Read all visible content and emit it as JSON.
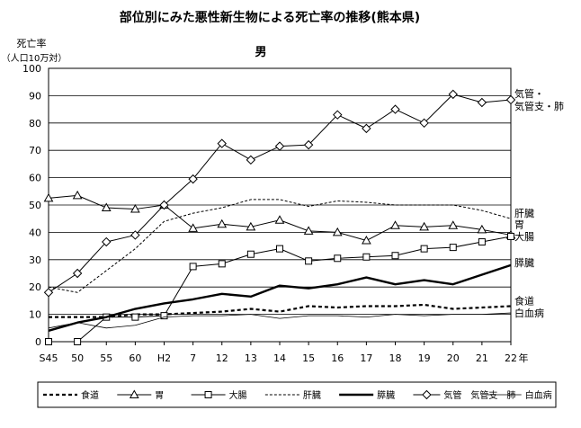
{
  "chart_data": {
    "type": "line",
    "title": "部位別にみた悪性新生物による死亡率の推移(熊本県)",
    "subtitle": "男",
    "ylabel": "死亡率",
    "ylabel_sub": "（人口10万対）",
    "xunit": "年",
    "ylim": [
      0,
      100
    ],
    "yticks": [
      0,
      10,
      20,
      30,
      40,
      50,
      60,
      70,
      80,
      90,
      100
    ],
    "grid": "horizontal",
    "legend_position": "bottom",
    "categories": [
      "S45",
      "50",
      "55",
      "60",
      "H2",
      "7",
      "12",
      "13",
      "14",
      "15",
      "16",
      "17",
      "18",
      "19",
      "20",
      "21",
      "22"
    ],
    "series": [
      {
        "name": "食道",
        "style": "dotted-thick",
        "marker": "none",
        "values": [
          9,
          9,
          9,
          10,
          10,
          10.5,
          11,
          12,
          11,
          13,
          12.5,
          13,
          13,
          13.5,
          12,
          12.5,
          13
        ]
      },
      {
        "name": "胃",
        "style": "solid",
        "marker": "triangle",
        "values": [
          52.5,
          53.5,
          49,
          48.5,
          50,
          41.5,
          43,
          42,
          44.5,
          40.5,
          40,
          37,
          42.5,
          42,
          42.5,
          41,
          39
        ]
      },
      {
        "name": "大腸",
        "style": "solid",
        "marker": "square",
        "values": [
          0,
          0,
          9,
          9,
          9.5,
          27.5,
          28.5,
          32,
          34,
          29.5,
          30.5,
          31,
          31.5,
          34,
          34.5,
          36.5,
          38.5
        ]
      },
      {
        "name": "肝臓",
        "style": "dashed",
        "marker": "none",
        "values": [
          20,
          18,
          26,
          34,
          44,
          47,
          49,
          52,
          52,
          49.5,
          51.5,
          51,
          50,
          50,
          50,
          48,
          45
        ]
      },
      {
        "name": "膵臓",
        "style": "solid-thick",
        "marker": "none",
        "values": [
          4,
          7,
          9,
          12,
          14,
          15.5,
          17.5,
          16.5,
          20.5,
          19.5,
          21,
          23.5,
          21,
          22.5,
          21,
          24.5,
          28
        ]
      },
      {
        "name": "気管　気管支　肺",
        "style": "solid",
        "marker": "diamond",
        "values": [
          18,
          25,
          36.5,
          39,
          50,
          59.5,
          72.5,
          66.5,
          71.5,
          72,
          83,
          78,
          85,
          80,
          90.5,
          87.5,
          88.5
        ]
      },
      {
        "name": "白血病",
        "style": "solid-thin",
        "marker": "none",
        "values": [
          5,
          7,
          5,
          6,
          9,
          9.5,
          9.5,
          10,
          8.5,
          9.5,
          9.5,
          9,
          10,
          9.5,
          10,
          10,
          10.5
        ]
      }
    ],
    "end_labels": [
      {
        "lines": [
          "気管・",
          "気管支・肺"
        ],
        "value": 88.5
      },
      {
        "lines": [
          "肝臓"
        ],
        "value": 47
      },
      {
        "lines": [
          "胃"
        ],
        "value": 43
      },
      {
        "lines": [
          "大腸"
        ],
        "value": 38.5
      },
      {
        "lines": [
          "膵臓"
        ],
        "value": 29
      },
      {
        "lines": [
          "食道"
        ],
        "value": 15
      },
      {
        "lines": [
          "白血病"
        ],
        "value": 10.5
      }
    ]
  }
}
